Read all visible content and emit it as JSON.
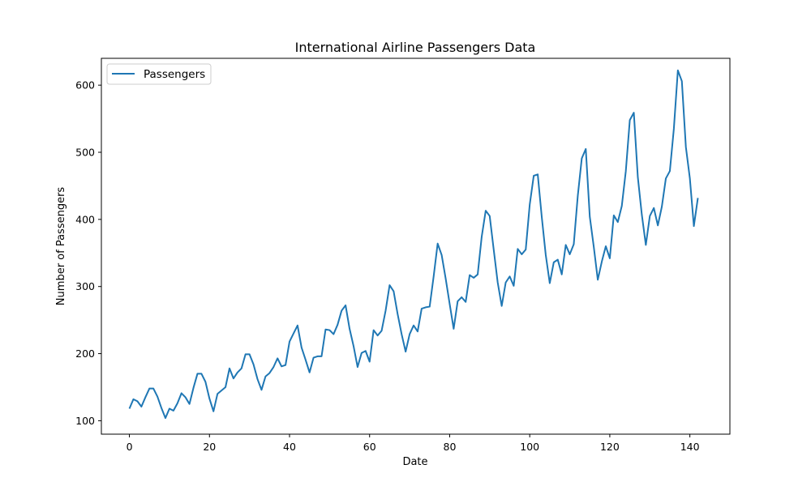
{
  "chart_data": {
    "type": "line",
    "title": "International Airline Passengers Data",
    "xlabel": "Date",
    "ylabel": "Number of Passengers",
    "xlim": [
      -7,
      150
    ],
    "ylim": [
      80,
      640
    ],
    "xticks": [
      0,
      20,
      40,
      60,
      80,
      100,
      120,
      140
    ],
    "yticks": [
      100,
      200,
      300,
      400,
      500,
      600
    ],
    "grid": false,
    "legend_position": "top-left",
    "series": [
      {
        "name": "Passengers",
        "color": "#1f77b4",
        "x": [
          0,
          1,
          2,
          3,
          4,
          5,
          6,
          7,
          8,
          9,
          10,
          11,
          12,
          13,
          14,
          15,
          16,
          17,
          18,
          19,
          20,
          21,
          22,
          23,
          24,
          25,
          26,
          27,
          28,
          29,
          30,
          31,
          32,
          33,
          34,
          35,
          36,
          37,
          38,
          39,
          40,
          41,
          42,
          43,
          44,
          45,
          46,
          47,
          48,
          49,
          50,
          51,
          52,
          53,
          54,
          55,
          56,
          57,
          58,
          59,
          60,
          61,
          62,
          63,
          64,
          65,
          66,
          67,
          68,
          69,
          70,
          71,
          72,
          73,
          74,
          75,
          76,
          77,
          78,
          79,
          80,
          81,
          82,
          83,
          84,
          85,
          86,
          87,
          88,
          89,
          90,
          91,
          92,
          93,
          94,
          95,
          96,
          97,
          98,
          99,
          100,
          101,
          102,
          103,
          104,
          105,
          106,
          107,
          108,
          109,
          110,
          111,
          112,
          113,
          114,
          115,
          116,
          117,
          118,
          119,
          120,
          121,
          122,
          123,
          124,
          125,
          126,
          127,
          128,
          129,
          130,
          131,
          132,
          133,
          134,
          135,
          136,
          137,
          138,
          139,
          140,
          141,
          142
        ],
        "values": [
          118,
          132,
          129,
          121,
          135,
          148,
          148,
          136,
          119,
          104,
          118,
          115,
          126,
          141,
          135,
          125,
          149,
          170,
          170,
          158,
          133,
          114,
          140,
          145,
          150,
          178,
          163,
          172,
          178,
          199,
          199,
          184,
          162,
          146,
          166,
          171,
          180,
          193,
          181,
          183,
          218,
          230,
          242,
          209,
          191,
          172,
          194,
          196,
          196,
          236,
          235,
          229,
          243,
          264,
          272,
          237,
          211,
          180,
          201,
          204,
          188,
          235,
          227,
          234,
          264,
          302,
          293,
          259,
          229,
          203,
          229,
          242,
          233,
          267,
          269,
          270,
          315,
          364,
          347,
          312,
          274,
          237,
          278,
          284,
          277,
          317,
          313,
          318,
          374,
          413,
          405,
          355,
          306,
          271,
          306,
          315,
          301,
          356,
          348,
          355,
          422,
          465,
          467,
          404,
          347,
          305,
          336,
          340,
          318,
          362,
          348,
          363,
          435,
          491,
          505,
          404,
          359,
          310,
          337,
          360,
          342,
          406,
          396,
          420,
          472,
          548,
          559,
          463,
          407,
          362,
          405,
          417,
          391,
          419,
          461,
          472,
          535,
          622,
          606,
          508,
          461,
          390,
          432
        ]
      }
    ]
  }
}
